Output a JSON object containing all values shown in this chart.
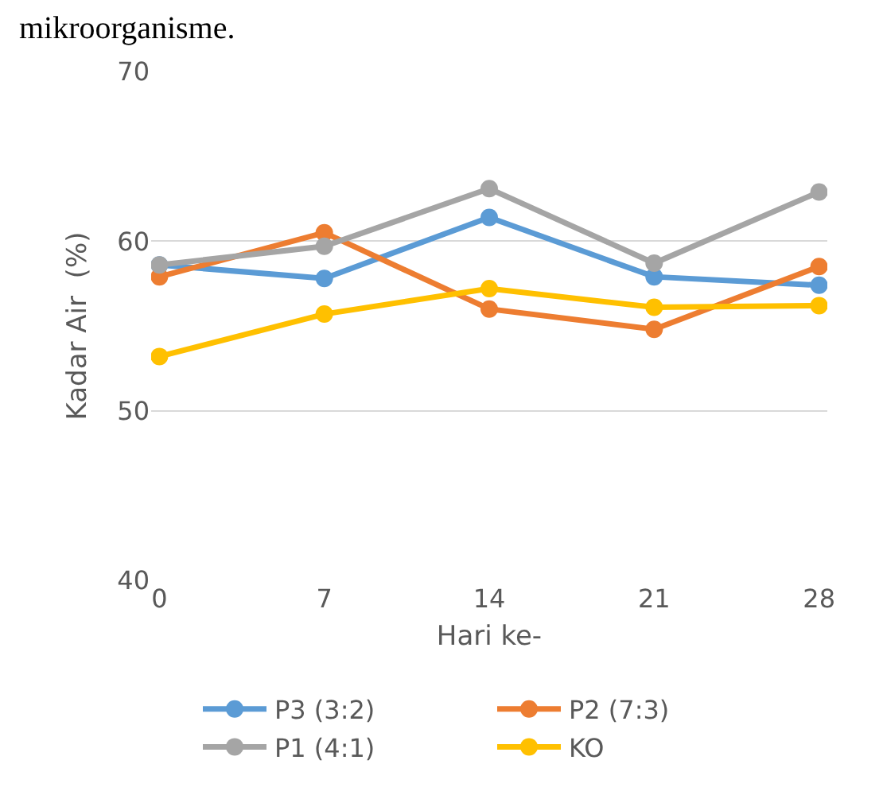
{
  "chart_data": {
    "type": "line",
    "xlabel": "Hari ke-",
    "ylabel": "Kadar Air  (%)",
    "annotations": [
      "mikroorganisme."
    ],
    "categories": [
      "0",
      "7",
      "14",
      "21",
      "28"
    ],
    "series": [
      {
        "name": "P3 (3:2)",
        "color": "#5b9bd5",
        "values": [
          58.6,
          57.8,
          61.4,
          57.9,
          57.4
        ]
      },
      {
        "name": "P2 (7:3)",
        "color": "#ed7d31",
        "values": [
          57.9,
          60.5,
          56.0,
          54.8,
          58.5
        ]
      },
      {
        "name": "P1 (4:1)",
        "color": "#a5a5a5",
        "values": [
          58.6,
          59.7,
          63.1,
          58.7,
          62.9
        ]
      },
      {
        "name": "KO",
        "color": "#ffc000",
        "values": [
          53.2,
          55.7,
          57.2,
          56.1,
          56.2
        ]
      }
    ],
    "ylim": [
      40,
      70
    ],
    "yticks": [
      40,
      50,
      60,
      70
    ],
    "grid": "y",
    "legend": "bottom",
    "marker": "circle",
    "line_style": "solid"
  }
}
